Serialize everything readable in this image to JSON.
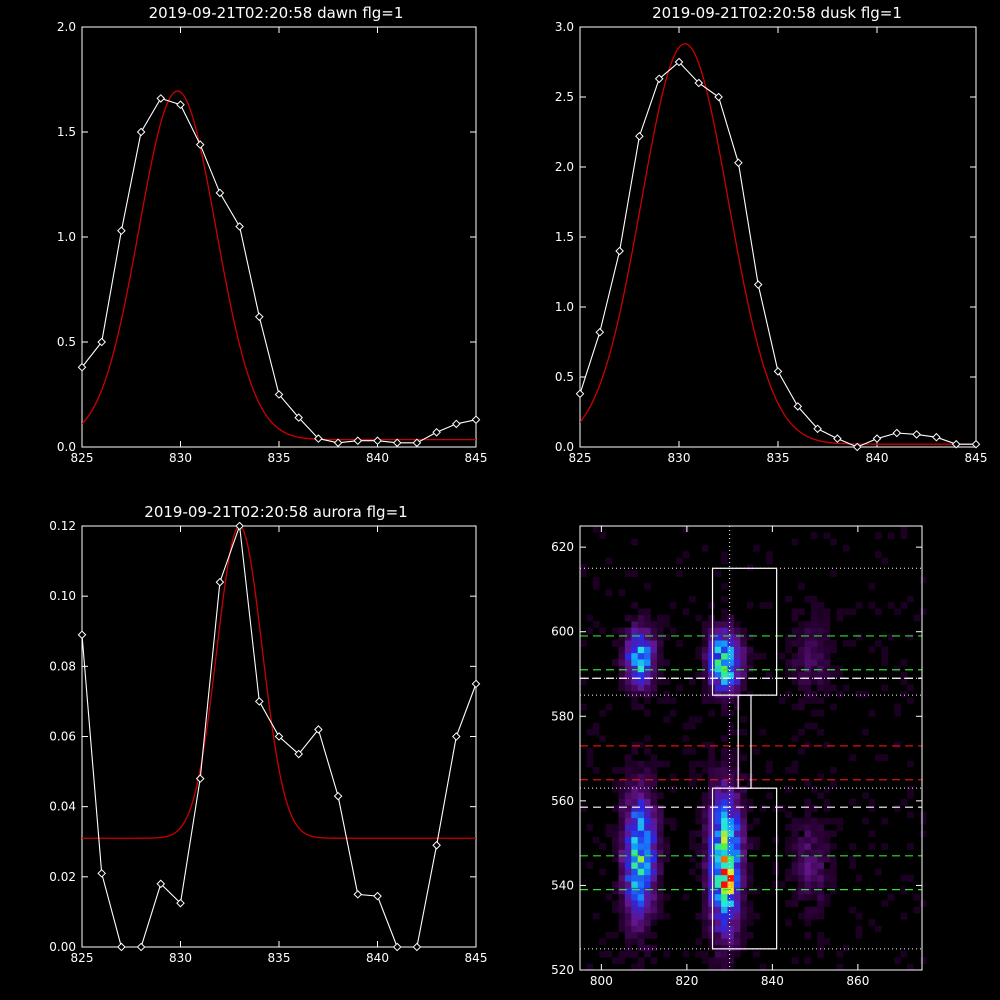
{
  "colors": {
    "background": "#000000",
    "axes": "#ffffff",
    "data_line": "#ffffff",
    "fit_line": "#cc0000",
    "green_dash": "#33dd33",
    "red_dash": "#dd1111"
  },
  "chart_data": [
    {
      "type": "line",
      "title": "2019-09-21T02:20:58 dawn flg=1",
      "xlim": [
        825,
        845
      ],
      "ylim": [
        0,
        2
      ],
      "xticks": [
        "825",
        "830",
        "835",
        "840",
        "845"
      ],
      "yticks": [
        "0.0",
        "0.5",
        "1.0",
        "1.5",
        "2.0"
      ],
      "series": [
        {
          "role": "data",
          "marker": "diamond",
          "x": [
            825,
            826,
            827,
            828,
            829,
            830,
            831,
            832,
            833,
            834,
            835,
            836,
            837,
            838,
            839,
            840,
            841,
            842,
            843,
            844,
            845
          ],
          "y": [
            0.38,
            0.5,
            1.03,
            1.5,
            1.66,
            1.63,
            1.44,
            1.21,
            1.05,
            0.62,
            0.25,
            0.14,
            0.04,
            0.02,
            0.03,
            0.03,
            0.02,
            0.02,
            0.07,
            0.11,
            0.13
          ]
        },
        {
          "role": "fit",
          "curve": "gaussian",
          "center": 829.85,
          "sigma": 1.95,
          "amplitude": 1.66,
          "baseline": 0.035
        }
      ]
    },
    {
      "type": "line",
      "title": "2019-09-21T02:20:58 dusk flg=1",
      "xlim": [
        825,
        845
      ],
      "ylim": [
        0,
        3
      ],
      "xticks": [
        "825",
        "830",
        "835",
        "840",
        "845"
      ],
      "yticks": [
        "0.0",
        "0.5",
        "1.0",
        "1.5",
        "2.0",
        "2.5",
        "3.0"
      ],
      "series": [
        {
          "role": "data",
          "marker": "diamond",
          "x": [
            825,
            826,
            827,
            828,
            829,
            830,
            831,
            832,
            833,
            834,
            835,
            836,
            837,
            838,
            839,
            840,
            841,
            842,
            843,
            844,
            845
          ],
          "y": [
            0.38,
            0.82,
            1.4,
            2.22,
            2.63,
            2.75,
            2.6,
            2.5,
            2.03,
            1.16,
            0.54,
            0.29,
            0.13,
            0.06,
            0.0,
            0.06,
            0.1,
            0.09,
            0.07,
            0.02,
            0.02
          ]
        },
        {
          "role": "fit",
          "curve": "gaussian",
          "center": 830.3,
          "sigma": 2.2,
          "amplitude": 2.86,
          "baseline": 0.02
        }
      ]
    },
    {
      "type": "line",
      "title": "2019-09-21T02:20:58 aurora flg=1",
      "xlim": [
        825,
        845
      ],
      "ylim": [
        0,
        0.12
      ],
      "xticks": [
        "825",
        "830",
        "835",
        "840",
        "845"
      ],
      "yticks": [
        "0.00",
        "0.02",
        "0.04",
        "0.06",
        "0.08",
        "0.10",
        "0.12"
      ],
      "series": [
        {
          "role": "data",
          "marker": "diamond",
          "x": [
            825,
            826,
            827,
            828,
            829,
            830,
            831,
            832,
            833,
            834,
            835,
            836,
            837,
            838,
            839,
            840,
            841,
            842,
            843,
            844,
            845
          ],
          "y": [
            0.089,
            0.021,
            0.0,
            0.0,
            0.018,
            0.0125,
            0.048,
            0.104,
            0.12,
            0.07,
            0.06,
            0.055,
            0.062,
            0.043,
            0.015,
            0.0145,
            0.0,
            0.0,
            0.029,
            0.06,
            0.075
          ]
        },
        {
          "role": "fit",
          "curve": "gaussian",
          "center": 833.0,
          "sigma": 1.15,
          "amplitude": 0.089,
          "baseline": 0.031
        }
      ]
    },
    {
      "type": "heatmap",
      "xlim": [
        795,
        875
      ],
      "ylim": [
        520,
        625
      ],
      "xticks": [
        "800",
        "820",
        "840",
        "860"
      ],
      "yticks": [
        "520",
        "540",
        "560",
        "580",
        "600",
        "620"
      ],
      "colormap": "rainbow",
      "blobs": [
        {
          "cx": 809,
          "cy": 594,
          "sx": 2.2,
          "sy": 4.2,
          "amp": 0.55
        },
        {
          "cx": 829,
          "cy": 593,
          "sx": 2.4,
          "sy": 4.5,
          "amp": 0.68
        },
        {
          "cx": 809,
          "cy": 547,
          "sx": 2.4,
          "sy": 9.5,
          "amp": 0.6
        },
        {
          "cx": 829,
          "cy": 546,
          "sx": 2.4,
          "sy": 10.5,
          "amp": 0.72
        },
        {
          "cx": 829.5,
          "cy": 542,
          "sx": 1.1,
          "sy": 3.0,
          "amp": 0.3
        },
        {
          "cx": 849,
          "cy": 545,
          "sx": 2.8,
          "sy": 7.0,
          "amp": 0.12
        },
        {
          "cx": 849,
          "cy": 594,
          "sx": 3.0,
          "sy": 6.0,
          "amp": 0.1
        }
      ],
      "vertical_line_x": 830,
      "boxes": [
        {
          "x0": 826,
          "x1": 841,
          "y0": 585,
          "y1": 615
        },
        {
          "x0": 832,
          "x1": 835,
          "y0": 563,
          "y1": 585
        },
        {
          "x0": 826,
          "x1": 841,
          "y0": 525,
          "y1": 563
        }
      ],
      "dotted_lines_y": [
        525,
        563,
        585,
        589,
        615
      ],
      "green_dashed_y": [
        539,
        547,
        591,
        599
      ],
      "white_dashed_y": [
        558.5,
        589
      ],
      "red_dashed_y": [
        565,
        573
      ]
    }
  ]
}
